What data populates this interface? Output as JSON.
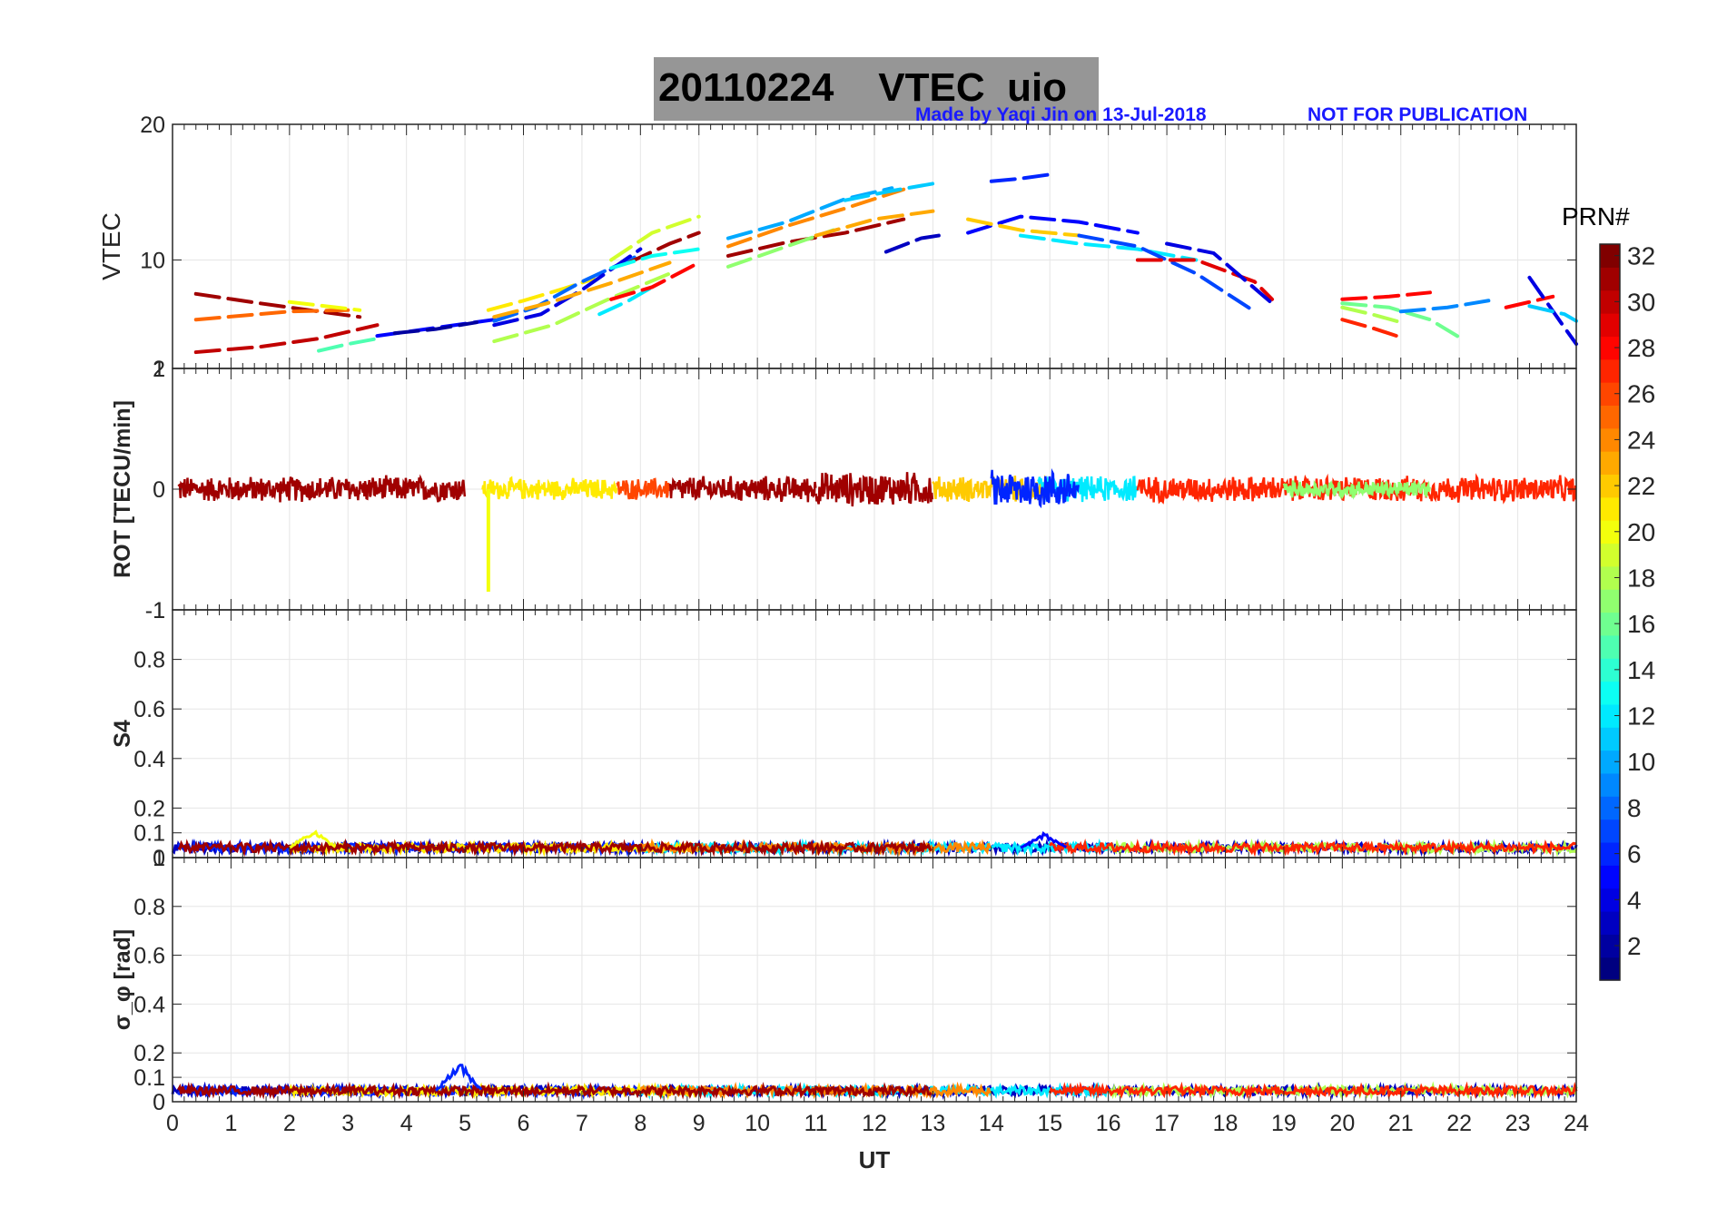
{
  "header": {
    "date": "20110224",
    "quantity": "VTEC",
    "station": "uio",
    "credit": "Made by Yaqi Jin on 13-Jul-2018",
    "notice": "NOT FOR PUBLICATION"
  },
  "chart_data": [
    {
      "type": "line",
      "panel": "vtec",
      "title": "20110224    VTEC  uio",
      "ylabel": "VTEC",
      "xlabel": "",
      "xlim": [
        0,
        24
      ],
      "ylim": [
        2,
        20
      ],
      "y_ticks": [
        2,
        10,
        20
      ],
      "grid": true,
      "description_values": "Per-satellite VTEC arcs; diurnal rise from ~4-7 at 0-5 UT to peak ~13-16 TECU near 12-15 UT, decreasing to ~3-7 by 19-24 UT",
      "series": [
        {
          "prn": 31,
          "x": [
            0.4,
            1.5,
            2.5,
            3.2
          ],
          "y": [
            7.5,
            6.8,
            6.2,
            5.8
          ]
        },
        {
          "prn": 30,
          "x": [
            0.4,
            1.5,
            2.5,
            3.5
          ],
          "y": [
            3.2,
            3.6,
            4.2,
            5.2
          ]
        },
        {
          "prn": 25,
          "x": [
            0.4,
            1.2,
            2.0,
            3.0
          ],
          "y": [
            5.6,
            5.9,
            6.2,
            6.3
          ]
        },
        {
          "prn": 20,
          "x": [
            2.0,
            2.6,
            3.2
          ],
          "y": [
            6.9,
            6.6,
            6.3
          ]
        },
        {
          "prn": 5,
          "x": [
            3.5,
            4.0,
            4.5,
            5.0,
            5.5
          ],
          "y": [
            4.4,
            4.7,
            5.0,
            5.3,
            5.6
          ]
        },
        {
          "prn": 15,
          "x": [
            2.5,
            3.0,
            3.5
          ],
          "y": [
            3.3,
            3.8,
            4.2
          ]
        },
        {
          "prn": 2,
          "x": [
            3.8,
            4.5,
            5.2
          ],
          "y": [
            4.6,
            4.9,
            5.4
          ]
        },
        {
          "prn": 21,
          "x": [
            5.4,
            6.0,
            6.7,
            7.2
          ],
          "y": [
            6.3,
            7.0,
            7.9,
            8.6
          ]
        },
        {
          "prn": 8,
          "x": [
            5.5,
            6.2,
            7.0,
            8.0
          ],
          "y": [
            5.5,
            6.5,
            8.4,
            10.4
          ]
        },
        {
          "prn": 4,
          "x": [
            5.5,
            6.3,
            7.0,
            8.0
          ],
          "y": [
            5.2,
            6.0,
            7.8,
            10.8
          ]
        },
        {
          "prn": 18,
          "x": [
            5.5,
            6.5,
            7.5,
            8.5
          ],
          "y": [
            4.0,
            5.2,
            7.2,
            9.0
          ]
        },
        {
          "prn": 23,
          "x": [
            5.5,
            6.4,
            7.5,
            8.5
          ],
          "y": [
            5.8,
            6.8,
            8.3,
            9.8
          ]
        },
        {
          "prn": 19,
          "x": [
            7.5,
            8.2,
            9.0
          ],
          "y": [
            10.0,
            12.0,
            13.2
          ]
        },
        {
          "prn": 31,
          "x": [
            7.8,
            8.5,
            9.0
          ],
          "y": [
            9.8,
            11.2,
            12.0
          ]
        },
        {
          "prn": 13,
          "x": [
            7.5,
            8.2,
            9.0
          ],
          "y": [
            9.4,
            10.3,
            10.8
          ]
        },
        {
          "prn": 12,
          "x": [
            7.3,
            7.8,
            8.2
          ],
          "y": [
            6.0,
            7.0,
            8.0
          ]
        },
        {
          "prn": 28,
          "x": [
            7.5,
            8.2,
            9.0
          ],
          "y": [
            7.1,
            8.0,
            9.8
          ]
        },
        {
          "prn": 10,
          "x": [
            9.5,
            10.5,
            11.5,
            12.3
          ],
          "y": [
            11.6,
            12.8,
            14.5,
            15.3
          ]
        },
        {
          "prn": 24,
          "x": [
            9.5,
            10.5,
            11.5,
            12.5
          ],
          "y": [
            11.0,
            12.5,
            13.8,
            15.2
          ]
        },
        {
          "prn": 31,
          "x": [
            9.5,
            10.5,
            11.5,
            12.5
          ],
          "y": [
            10.3,
            11.3,
            12.0,
            13.0
          ]
        },
        {
          "prn": 17,
          "x": [
            9.5,
            10.5,
            11.3
          ],
          "y": [
            9.5,
            11.0,
            12.2
          ]
        },
        {
          "prn": 11,
          "x": [
            11.5,
            12.3,
            13.1
          ],
          "y": [
            14.4,
            15.1,
            15.7
          ]
        },
        {
          "prn": 23,
          "x": [
            11.0,
            12.0,
            13.0
          ],
          "y": [
            11.8,
            13.0,
            13.6
          ]
        },
        {
          "prn": 3,
          "x": [
            12.2,
            12.8,
            13.1
          ],
          "y": [
            10.6,
            11.6,
            11.8
          ]
        },
        {
          "prn": 6,
          "x": [
            14.0,
            14.5,
            15.0
          ],
          "y": [
            15.8,
            16.0,
            16.3
          ]
        },
        {
          "prn": 5,
          "x": [
            13.6,
            14.5,
            15.5,
            16.5
          ],
          "y": [
            12.0,
            13.2,
            12.8,
            12.0
          ]
        },
        {
          "prn": 22,
          "x": [
            13.6,
            14.5,
            15.5
          ],
          "y": [
            13.0,
            12.2,
            11.8
          ]
        },
        {
          "prn": 12,
          "x": [
            14.5,
            15.5,
            16.5,
            17.5
          ],
          "y": [
            11.8,
            11.2,
            10.8,
            10.0
          ]
        },
        {
          "prn": 7,
          "x": [
            15.5,
            16.5,
            17.5,
            18.5
          ],
          "y": [
            11.8,
            11.0,
            9.0,
            6.2
          ]
        },
        {
          "prn": 29,
          "x": [
            16.5,
            17.5,
            18.5,
            18.8
          ],
          "y": [
            10.0,
            10.0,
            8.4,
            7.1
          ]
        },
        {
          "prn": 4,
          "x": [
            17.0,
            17.8,
            18.8
          ],
          "y": [
            11.2,
            10.5,
            6.8
          ]
        },
        {
          "prn": 27,
          "x": [
            20.0,
            20.5,
            21.0
          ],
          "y": [
            5.6,
            5.0,
            4.3
          ]
        },
        {
          "prn": 28,
          "x": [
            20.0,
            20.8,
            21.5
          ],
          "y": [
            7.1,
            7.3,
            7.6
          ]
        },
        {
          "prn": 16,
          "x": [
            20.0,
            20.8,
            21.5,
            22.0
          ],
          "y": [
            6.8,
            6.5,
            5.6,
            4.3
          ]
        },
        {
          "prn": 18,
          "x": [
            20.0,
            20.5,
            21.0
          ],
          "y": [
            6.5,
            6.0,
            5.4
          ]
        },
        {
          "prn": 9,
          "x": [
            21.0,
            21.8,
            22.5
          ],
          "y": [
            6.2,
            6.5,
            7.0
          ]
        },
        {
          "prn": 28,
          "x": [
            22.8,
            23.3,
            23.6
          ],
          "y": [
            6.5,
            7.0,
            7.3
          ]
        },
        {
          "prn": 4,
          "x": [
            23.2,
            23.8,
            24.0
          ],
          "y": [
            8.7,
            5.0,
            3.8
          ]
        },
        {
          "prn": 11,
          "x": [
            23.2,
            23.8,
            24.0
          ],
          "y": [
            6.6,
            6.0,
            5.5
          ]
        }
      ]
    },
    {
      "type": "line",
      "panel": "rot",
      "ylabel": "ROT [TECU/min]",
      "xlim": [
        0,
        24
      ],
      "ylim": [
        -1,
        1
      ],
      "y_ticks": [
        -1,
        0,
        1
      ],
      "grid": true,
      "description_values": "Rate of TEC values fluctuating within about -0.15 to +0.15 TECU/min for all satellites; one spike to about -0.85 near 5.4 UT (PRN 20)",
      "segments": [
        {
          "prn": 31,
          "x0": 0.1,
          "x1": 5.0,
          "amp": 0.12
        },
        {
          "prn": 21,
          "x0": 5.3,
          "x1": 7.6,
          "amp": 0.1
        },
        {
          "prn": 26,
          "x0": 7.6,
          "x1": 8.5,
          "amp": 0.1
        },
        {
          "prn": 31,
          "x0": 8.5,
          "x1": 11.0,
          "amp": 0.12
        },
        {
          "prn": 31,
          "x0": 11.0,
          "x1": 13.0,
          "amp": 0.16
        },
        {
          "prn": 22,
          "x0": 13.0,
          "x1": 15.0,
          "amp": 0.12
        },
        {
          "prn": 12,
          "x0": 14.8,
          "x1": 16.5,
          "amp": 0.12
        },
        {
          "prn": 6,
          "x0": 14.0,
          "x1": 15.5,
          "amp": 0.18
        },
        {
          "prn": 27,
          "x0": 16.5,
          "x1": 24.0,
          "amp": 0.12
        },
        {
          "prn": 17,
          "x0": 19.0,
          "x1": 21.5,
          "amp": 0.08
        }
      ],
      "spikes": [
        {
          "prn": 20,
          "x": 5.4,
          "y": -0.85
        }
      ]
    },
    {
      "type": "line",
      "panel": "s4",
      "ylabel": "S4",
      "xlim": [
        0,
        24
      ],
      "ylim": [
        0,
        1
      ],
      "y_ticks": [
        0,
        0.1,
        0.2,
        0.4,
        0.6,
        0.8,
        1
      ],
      "grid": true,
      "description_values": "S4 scintillation index mostly between 0.02 and 0.07 across all UT; brief peak near 0.12 at ~2.4 UT",
      "baseline": 0.04,
      "spikes": [
        {
          "prn": 20,
          "x": 2.4,
          "y": 0.12
        },
        {
          "prn": 5,
          "x": 14.9,
          "y": 0.1
        }
      ]
    },
    {
      "type": "line",
      "panel": "sigma_phi",
      "ylabel": "σ_φ [rad]",
      "xlabel": "UT",
      "xlim": [
        0,
        24
      ],
      "ylim": [
        0,
        1
      ],
      "y_ticks": [
        0,
        0.1,
        0.2,
        0.4,
        0.6,
        0.8,
        1
      ],
      "x_ticks": [
        "0",
        "1",
        "2",
        "3",
        "4",
        "5",
        "6",
        "7",
        "8",
        "9",
        "10",
        "11",
        "12",
        "13",
        "14",
        "15",
        "16",
        "17",
        "18",
        "19",
        "20",
        "21",
        "22",
        "23",
        "24"
      ],
      "grid": true,
      "description_values": "Phase scintillation index mostly 0.02-0.07 rad; enhancement up to ~0.17 rad near 4.5-5.1 UT (PRN 6)",
      "baseline": 0.045,
      "spikes": [
        {
          "prn": 6,
          "x": 4.9,
          "y": 0.17
        }
      ]
    }
  ],
  "colorbar": {
    "label": "PRN#",
    "min": 1,
    "max": 32,
    "ticks": [
      "2",
      "4",
      "6",
      "8",
      "10",
      "12",
      "14",
      "16",
      "18",
      "20",
      "22",
      "24",
      "26",
      "28",
      "30",
      "32"
    ]
  }
}
